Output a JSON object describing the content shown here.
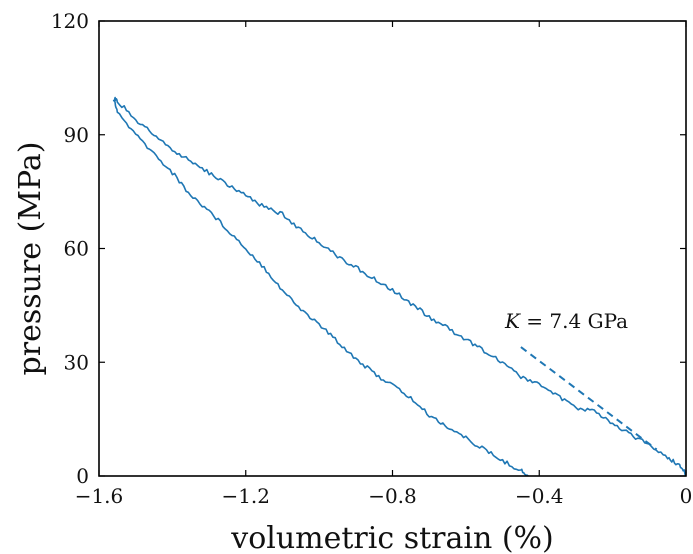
{
  "chart_data": {
    "type": "line",
    "title": "",
    "xlabel": "volumetric strain (%)",
    "ylabel": "pressure (MPa)",
    "xlim": [
      -1.6,
      0
    ],
    "ylim": [
      0,
      120
    ],
    "xticks": [
      -1.6,
      -1.2,
      -0.8,
      -0.4,
      0
    ],
    "xtick_labels": [
      "−1.6",
      "−1.2",
      "−0.8",
      "−0.4",
      "0"
    ],
    "yticks": [
      0,
      30,
      60,
      90,
      120
    ],
    "ytick_labels": [
      "0",
      "30",
      "60",
      "90",
      "120"
    ],
    "grid": false,
    "colors": {
      "series": "#1f77b4",
      "axis": "#000000"
    },
    "series": [
      {
        "line_style": "solid",
        "x": [
          0.0,
          -0.02,
          -0.05,
          -0.1,
          -0.15,
          -0.2,
          -0.25,
          -0.3,
          -0.35,
          -0.4,
          -0.45,
          -0.5,
          -0.55,
          -0.6,
          -0.65,
          -0.7,
          -0.75,
          -0.8,
          -0.85,
          -0.9,
          -0.95,
          -1.0,
          -1.05,
          -1.1,
          -1.15,
          -1.2,
          -1.25,
          -1.3,
          -1.35,
          -1.4,
          -1.45,
          -1.5,
          -1.55,
          -1.56,
          -1.55,
          -1.5,
          -1.45,
          -1.4,
          -1.35,
          -1.3,
          -1.25,
          -1.2,
          -1.15,
          -1.1,
          -1.05,
          -1.0,
          -0.95,
          -0.9,
          -0.85,
          -0.8,
          -0.75,
          -0.7,
          -0.65,
          -0.6,
          -0.55,
          -0.5,
          -0.45,
          -0.43
        ],
        "y": [
          0.5,
          3,
          5,
          8,
          11,
          14,
          17,
          18,
          21,
          24,
          26,
          30,
          33,
          36,
          39,
          42,
          45.5,
          49,
          52,
          55,
          58,
          61.5,
          65,
          69,
          71,
          74,
          77,
          80,
          83,
          86,
          90,
          94,
          99,
          99.5,
          96,
          90,
          85,
          80,
          74,
          70,
          65,
          60,
          55,
          49,
          44,
          40,
          35.5,
          31,
          27,
          24,
          20.5,
          16,
          13,
          10,
          7,
          4,
          1.5,
          0
        ]
      }
    ],
    "annotations": [
      {
        "label_symbol": "K",
        "label_text": " = 7.4 GPa",
        "line_style": "dashed",
        "line_x": [
          -0.45,
          -0.08
        ],
        "line_y": [
          34,
          7
        ]
      }
    ]
  }
}
